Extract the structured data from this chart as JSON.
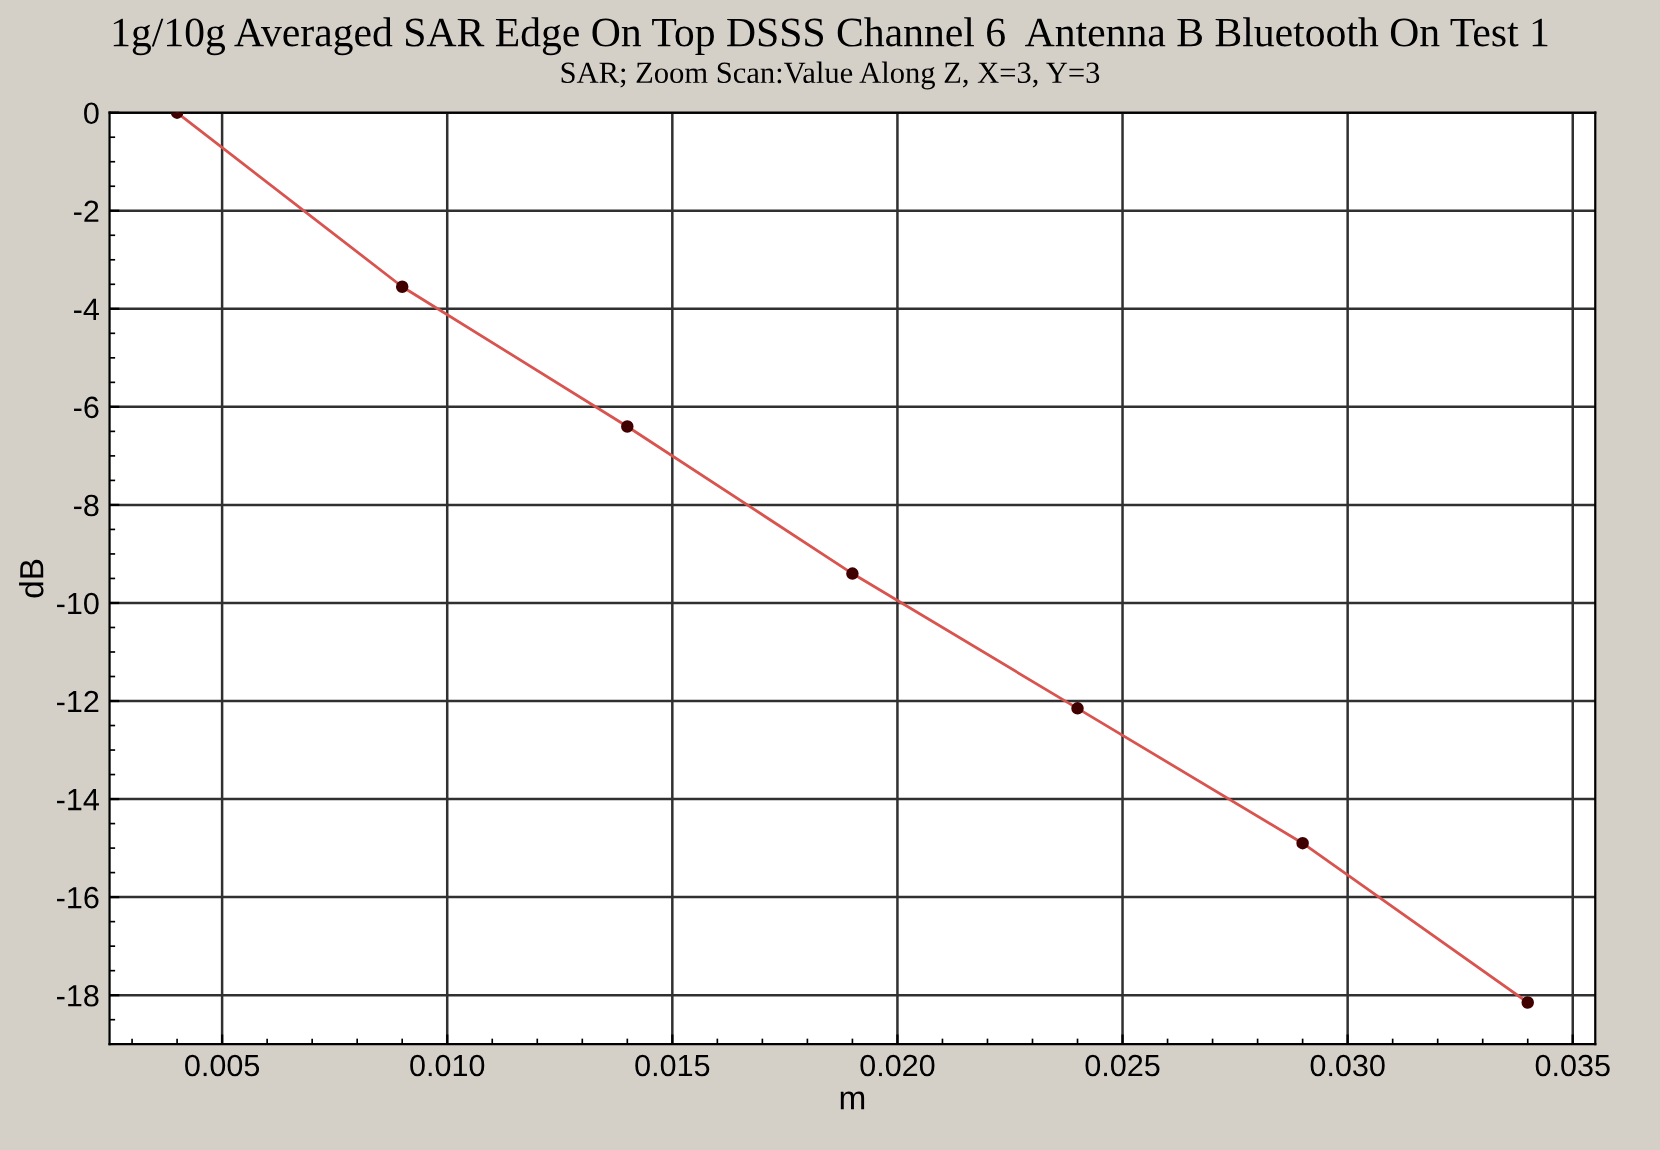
{
  "chart_data": {
    "type": "line",
    "title": "1g/10g Averaged SAR Edge On Top DSSS Channel 6  Antenna B Bluetooth On Test 1",
    "subtitle": "SAR; Zoom Scan:Value Along Z, X=3, Y=3",
    "xlabel": "m",
    "ylabel": "dB",
    "x": [
      0.004,
      0.009,
      0.014,
      0.019,
      0.024,
      0.029,
      0.034
    ],
    "series": [
      {
        "color": "#d9534f",
        "values": [
          0,
          -3.55,
          -6.4,
          -9.4,
          -12.15,
          -14.9,
          -18.15
        ]
      }
    ],
    "xlim": [
      0.0025,
      0.0355
    ],
    "ylim": [
      -19,
      0
    ],
    "xticks": [
      {
        "value": 0.005,
        "label": "0.005"
      },
      {
        "value": 0.01,
        "label": "0.010"
      },
      {
        "value": 0.015,
        "label": "0.015"
      },
      {
        "value": 0.02,
        "label": "0.020"
      },
      {
        "value": 0.025,
        "label": "0.025"
      },
      {
        "value": 0.03,
        "label": "0.030"
      },
      {
        "value": 0.035,
        "label": "0.035"
      }
    ],
    "yticks": [
      0,
      -2,
      -4,
      -6,
      -8,
      -10,
      -12,
      -14,
      -16,
      -18
    ],
    "grid": true,
    "marker": "circle",
    "line_style": "solid"
  }
}
